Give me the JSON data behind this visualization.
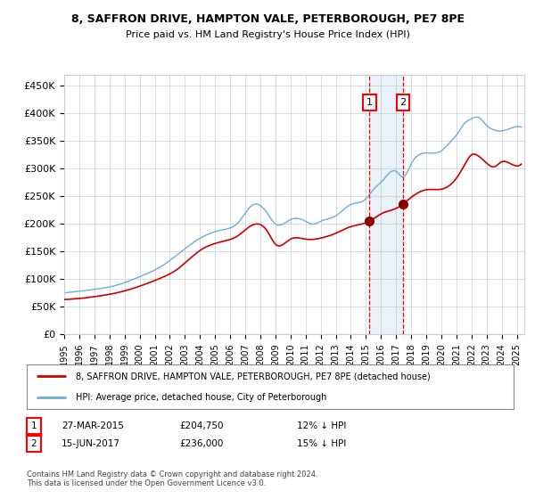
{
  "title1": "8, SAFFRON DRIVE, HAMPTON VALE, PETERBOROUGH, PE7 8PE",
  "title2": "Price paid vs. HM Land Registry's House Price Index (HPI)",
  "ylabel_ticks": [
    "£0",
    "£50K",
    "£100K",
    "£150K",
    "£200K",
    "£250K",
    "£300K",
    "£350K",
    "£400K",
    "£450K"
  ],
  "ytick_vals": [
    0,
    50000,
    100000,
    150000,
    200000,
    250000,
    300000,
    350000,
    400000,
    450000
  ],
  "sale1_date": 2015.23,
  "sale1_price": 204750,
  "sale2_date": 2017.46,
  "sale2_price": 236000,
  "hpi_color": "#6baed6",
  "price_color": "#cc0000",
  "dot_color": "#8b0000",
  "grid_color": "#cccccc",
  "bg_color": "#ffffff",
  "legend_line1": "8, SAFFRON DRIVE, HAMPTON VALE, PETERBOROUGH, PE7 8PE (detached house)",
  "legend_line2": "HPI: Average price, detached house, City of Peterborough",
  "table_row1": [
    "1",
    "27-MAR-2015",
    "£204,750",
    "12% ↓ HPI"
  ],
  "table_row2": [
    "2",
    "15-JUN-2017",
    "£236,000",
    "15% ↓ HPI"
  ],
  "footer": "Contains HM Land Registry data © Crown copyright and database right 2024.\nThis data is licensed under the Open Government Licence v3.0.",
  "xmin": 1995.0,
  "xmax": 2025.5,
  "ymin": 0,
  "ymax": 470000,
  "hpi_anchors_t": [
    1995.0,
    1996.0,
    1997.0,
    1998.5,
    2000.0,
    2001.5,
    2002.5,
    2004.0,
    2005.5,
    2006.5,
    2007.5,
    2008.5,
    2009.0,
    2010.0,
    2011.0,
    2011.5,
    2012.0,
    2013.0,
    2014.0,
    2015.0,
    2015.5,
    2016.0,
    2017.0,
    2017.5,
    2018.0,
    2019.0,
    2020.0,
    2020.5,
    2021.0,
    2021.5,
    2022.0,
    2022.5,
    2023.0,
    2023.5,
    2024.0,
    2024.5,
    2025.3
  ],
  "hpi_anchors_v": [
    75000,
    78000,
    82000,
    90000,
    105000,
    125000,
    145000,
    175000,
    190000,
    202000,
    235000,
    218000,
    200000,
    208000,
    205000,
    200000,
    205000,
    215000,
    235000,
    245000,
    262000,
    275000,
    295000,
    285000,
    308000,
    328000,
    332000,
    345000,
    360000,
    380000,
    390000,
    392000,
    378000,
    370000,
    368000,
    372000,
    375000
  ],
  "price_anchors_t": [
    1995.0,
    1996.0,
    1997.0,
    1998.5,
    2000.0,
    2001.5,
    2002.5,
    2004.0,
    2005.5,
    2006.5,
    2007.5,
    2008.5,
    2009.0,
    2010.0,
    2011.0,
    2012.0,
    2013.0,
    2014.0,
    2015.0,
    2015.23,
    2016.0,
    2017.0,
    2017.46,
    2018.0,
    2019.0,
    2020.0,
    2021.0,
    2021.5,
    2022.0,
    2022.5,
    2023.0,
    2023.5,
    2024.0,
    2024.5,
    2025.3
  ],
  "price_anchors_v": [
    63000,
    65000,
    68000,
    75000,
    87000,
    103000,
    118000,
    152000,
    168000,
    178000,
    198000,
    185000,
    163000,
    172000,
    172000,
    174000,
    183000,
    195000,
    202000,
    204750,
    218000,
    228000,
    236000,
    248000,
    262000,
    263000,
    283000,
    305000,
    325000,
    322000,
    310000,
    303000,
    312000,
    310000,
    308000
  ]
}
